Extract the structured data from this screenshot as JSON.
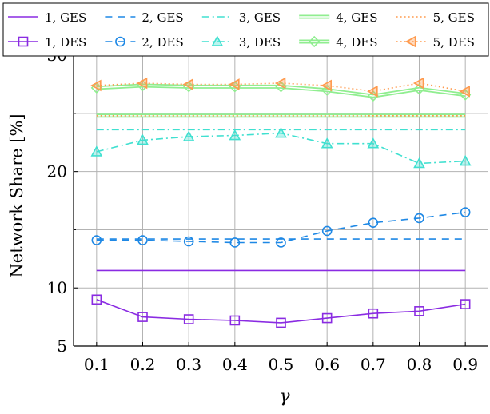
{
  "chart_data": {
    "type": "line",
    "title": "",
    "xlabel": "γ",
    "ylabel": "Network Share [%]",
    "x": [
      0.1,
      0.2,
      0.3,
      0.4,
      0.5,
      0.6,
      0.7,
      0.8,
      0.9
    ],
    "xticks": [
      "0.1",
      "0.2",
      "0.3",
      "0.4",
      "0.5",
      "0.6",
      "0.7",
      "0.8",
      "0.9"
    ],
    "xlim": [
      0.05,
      0.95
    ],
    "ylim": [
      5,
      32
    ],
    "yticks": [
      5,
      10,
      20,
      30
    ],
    "ytick_labels": [
      "5",
      "10",
      "20",
      "30"
    ],
    "minor_y_gridlines": [
      15,
      25
    ],
    "grid": true,
    "legend_position": "top",
    "series": [
      {
        "name": "1, GES",
        "color": "#8a2be2",
        "style": "solid",
        "marker": "none",
        "values": [
          11.5,
          11.5,
          11.5,
          11.5,
          11.5,
          11.5,
          11.5,
          11.5,
          11.5
        ]
      },
      {
        "name": "2, GES",
        "color": "#1e88e5",
        "style": "dashed",
        "marker": "none",
        "values": [
          14.2,
          14.2,
          14.2,
          14.2,
          14.2,
          14.2,
          14.2,
          14.2,
          14.2
        ]
      },
      {
        "name": "3, GES",
        "color": "#40e0d0",
        "style": "dashdot",
        "marker": "none",
        "values": [
          23.6,
          23.6,
          23.6,
          23.6,
          23.6,
          23.6,
          23.6,
          23.6,
          23.6
        ]
      },
      {
        "name": "4, GES",
        "color": "#90ee90",
        "style": "double",
        "marker": "none",
        "values": [
          24.8,
          24.8,
          24.8,
          24.8,
          24.8,
          24.8,
          24.8,
          24.8,
          24.8
        ]
      },
      {
        "name": "5, GES",
        "color": "#ff9a4d",
        "style": "dotted",
        "marker": "none",
        "values": [
          24.8,
          24.8,
          24.8,
          24.8,
          24.8,
          24.8,
          24.8,
          24.8,
          24.8
        ]
      },
      {
        "name": "1, DES",
        "color": "#8a2be2",
        "style": "solid",
        "marker": "square",
        "values": [
          9.0,
          7.5,
          7.3,
          7.2,
          7.0,
          7.4,
          7.8,
          8.0,
          8.6
        ]
      },
      {
        "name": "2, DES",
        "color": "#1e88e5",
        "style": "dashed",
        "marker": "circle",
        "values": [
          14.1,
          14.1,
          14.0,
          13.9,
          13.9,
          14.9,
          15.6,
          16.0,
          16.5
        ]
      },
      {
        "name": "3, DES",
        "color": "#40e0d0",
        "style": "dashdot",
        "marker": "triangle",
        "values": [
          21.7,
          22.7,
          23.0,
          23.1,
          23.3,
          22.4,
          22.4,
          20.7,
          20.9
        ]
      },
      {
        "name": "4, DES",
        "color": "#90ee90",
        "style": "double",
        "marker": "diamond",
        "values": [
          27.2,
          27.4,
          27.3,
          27.3,
          27.3,
          27.0,
          26.5,
          27.1,
          26.6
        ]
      },
      {
        "name": "5, DES",
        "color": "#ff9a4d",
        "style": "dotted",
        "marker": "triangle-left",
        "values": [
          27.4,
          27.6,
          27.5,
          27.5,
          27.6,
          27.4,
          26.9,
          27.6,
          26.9
        ]
      }
    ]
  }
}
